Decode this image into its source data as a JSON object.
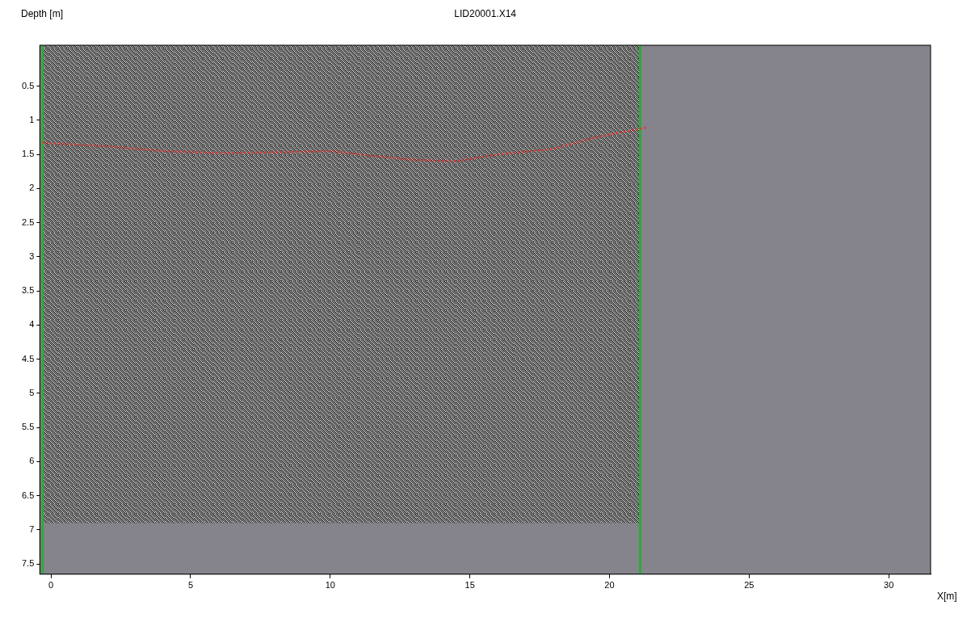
{
  "chart_data": {
    "type": "line",
    "title": "LID20001.X14",
    "y_label": "Depth [m]",
    "x_label": "X[m]",
    "x": [
      -0.3,
      2,
      4,
      6,
      8,
      10,
      11.5,
      13,
      14.5,
      16,
      18,
      19.5,
      21.4
    ],
    "values": [
      1.33,
      1.38,
      1.45,
      1.48,
      1.47,
      1.45,
      1.52,
      1.58,
      1.6,
      1.5,
      1.42,
      1.25,
      1.1
    ],
    "color": "#e8322e",
    "line_style": "dotted",
    "marker": "none",
    "xlim": [
      -0.4,
      31.5
    ],
    "xticks": [
      0,
      5,
      10,
      15,
      20,
      25,
      30
    ],
    "ylim": [
      -0.1,
      7.65
    ],
    "yticks": [
      0.5,
      1,
      1.5,
      2,
      2.5,
      3,
      3.5,
      4,
      4.5,
      5,
      5.5,
      6,
      6.5,
      7,
      7.5
    ],
    "grid": false,
    "scan_extent": {
      "x": [
        -0.3,
        21.1
      ],
      "depth": [
        -0.1,
        6.9
      ]
    }
  }
}
